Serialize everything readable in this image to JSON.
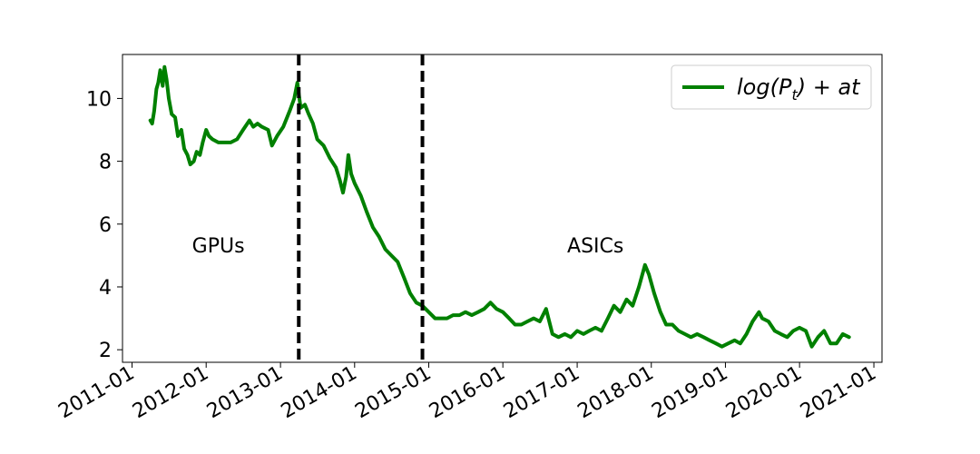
{
  "chart_data": {
    "type": "line",
    "grid": false,
    "legend_placement": "top-right",
    "x_axis": {
      "kind": "date",
      "range": [
        "2010-11-15",
        "2021-02-10"
      ],
      "tick_labels": [
        "2011-01",
        "2012-01",
        "2013-01",
        "2014-01",
        "2015-01",
        "2016-01",
        "2017-01",
        "2018-01",
        "2019-01",
        "2020-01",
        "2021-01"
      ]
    },
    "y_axis": {
      "range": [
        1.6,
        11.4
      ],
      "ticks": [
        2,
        4,
        6,
        8,
        10
      ]
    },
    "vlines": [
      {
        "x": "2013-04-01",
        "style": "dashed",
        "color": "#000000"
      },
      {
        "x": "2014-12-01",
        "style": "dashed",
        "color": "#000000"
      }
    ],
    "annotations": [
      {
        "text": "GPUs",
        "x": "2012-03-01",
        "y": 5.1
      },
      {
        "text": "ASICs",
        "x": "2017-04-01",
        "y": 5.1
      }
    ],
    "series": [
      {
        "legend_math": {
          "pre": "log(",
          "var": "P",
          "sub": "t",
          "post": ") + at"
        },
        "color": "#008000",
        "points": [
          [
            "2011-04-01",
            9.3
          ],
          [
            "2011-04-10",
            9.2
          ],
          [
            "2011-04-20",
            9.6
          ],
          [
            "2011-05-01",
            10.3
          ],
          [
            "2011-05-10",
            10.5
          ],
          [
            "2011-05-20",
            10.9
          ],
          [
            "2011-06-01",
            10.4
          ],
          [
            "2011-06-10",
            11.0
          ],
          [
            "2011-06-20",
            10.6
          ],
          [
            "2011-07-01",
            10.0
          ],
          [
            "2011-07-15",
            9.5
          ],
          [
            "2011-08-01",
            9.4
          ],
          [
            "2011-08-15",
            8.8
          ],
          [
            "2011-09-01",
            9.0
          ],
          [
            "2011-09-15",
            8.4
          ],
          [
            "2011-10-01",
            8.2
          ],
          [
            "2011-10-15",
            7.9
          ],
          [
            "2011-11-01",
            8.0
          ],
          [
            "2011-11-15",
            8.3
          ],
          [
            "2011-12-01",
            8.2
          ],
          [
            "2011-12-15",
            8.6
          ],
          [
            "2012-01-01",
            9.0
          ],
          [
            "2012-01-15",
            8.8
          ],
          [
            "2012-02-01",
            8.7
          ],
          [
            "2012-03-01",
            8.6
          ],
          [
            "2012-04-01",
            8.6
          ],
          [
            "2012-05-01",
            8.6
          ],
          [
            "2012-06-01",
            8.7
          ],
          [
            "2012-07-01",
            9.0
          ],
          [
            "2012-08-01",
            9.3
          ],
          [
            "2012-08-20",
            9.1
          ],
          [
            "2012-09-10",
            9.2
          ],
          [
            "2012-10-01",
            9.1
          ],
          [
            "2012-11-01",
            9.0
          ],
          [
            "2012-11-20",
            8.5
          ],
          [
            "2012-12-15",
            8.8
          ],
          [
            "2013-01-15",
            9.1
          ],
          [
            "2013-02-15",
            9.6
          ],
          [
            "2013-03-10",
            10.0
          ],
          [
            "2013-03-25",
            10.5
          ],
          [
            "2013-04-10",
            9.7
          ],
          [
            "2013-05-01",
            9.8
          ],
          [
            "2013-05-20",
            9.5
          ],
          [
            "2013-06-10",
            9.2
          ],
          [
            "2013-07-01",
            8.7
          ],
          [
            "2013-08-01",
            8.5
          ],
          [
            "2013-09-01",
            8.1
          ],
          [
            "2013-10-01",
            7.8
          ],
          [
            "2013-10-20",
            7.4
          ],
          [
            "2013-11-05",
            7.0
          ],
          [
            "2013-11-20",
            7.5
          ],
          [
            "2013-12-01",
            8.2
          ],
          [
            "2013-12-15",
            7.6
          ],
          [
            "2014-01-01",
            7.3
          ],
          [
            "2014-02-01",
            6.9
          ],
          [
            "2014-03-01",
            6.4
          ],
          [
            "2014-04-01",
            5.9
          ],
          [
            "2014-05-01",
            5.6
          ],
          [
            "2014-06-01",
            5.2
          ],
          [
            "2014-07-01",
            5.0
          ],
          [
            "2014-08-01",
            4.8
          ],
          [
            "2014-09-01",
            4.3
          ],
          [
            "2014-10-01",
            3.8
          ],
          [
            "2014-11-01",
            3.5
          ],
          [
            "2014-12-01",
            3.4
          ],
          [
            "2015-01-01",
            3.2
          ],
          [
            "2015-02-01",
            3.0
          ],
          [
            "2015-03-01",
            3.0
          ],
          [
            "2015-04-01",
            3.0
          ],
          [
            "2015-05-01",
            3.1
          ],
          [
            "2015-06-01",
            3.1
          ],
          [
            "2015-07-01",
            3.2
          ],
          [
            "2015-08-01",
            3.1
          ],
          [
            "2015-09-01",
            3.2
          ],
          [
            "2015-10-01",
            3.3
          ],
          [
            "2015-11-01",
            3.5
          ],
          [
            "2015-12-01",
            3.3
          ],
          [
            "2016-01-01",
            3.2
          ],
          [
            "2016-02-01",
            3.0
          ],
          [
            "2016-03-01",
            2.8
          ],
          [
            "2016-04-01",
            2.8
          ],
          [
            "2016-05-01",
            2.9
          ],
          [
            "2016-06-01",
            3.0
          ],
          [
            "2016-07-01",
            2.9
          ],
          [
            "2016-08-01",
            3.3
          ],
          [
            "2016-09-01",
            2.5
          ],
          [
            "2016-10-01",
            2.4
          ],
          [
            "2016-11-01",
            2.5
          ],
          [
            "2016-12-01",
            2.4
          ],
          [
            "2017-01-01",
            2.6
          ],
          [
            "2017-02-01",
            2.5
          ],
          [
            "2017-03-01",
            2.6
          ],
          [
            "2017-04-01",
            2.7
          ],
          [
            "2017-05-01",
            2.6
          ],
          [
            "2017-06-01",
            3.0
          ],
          [
            "2017-07-01",
            3.4
          ],
          [
            "2017-08-01",
            3.2
          ],
          [
            "2017-09-01",
            3.6
          ],
          [
            "2017-10-01",
            3.4
          ],
          [
            "2017-11-01",
            4.0
          ],
          [
            "2017-12-01",
            4.7
          ],
          [
            "2017-12-20",
            4.4
          ],
          [
            "2018-01-15",
            3.8
          ],
          [
            "2018-02-15",
            3.2
          ],
          [
            "2018-03-15",
            2.8
          ],
          [
            "2018-04-15",
            2.8
          ],
          [
            "2018-05-15",
            2.6
          ],
          [
            "2018-06-15",
            2.5
          ],
          [
            "2018-07-15",
            2.4
          ],
          [
            "2018-08-15",
            2.5
          ],
          [
            "2018-09-15",
            2.4
          ],
          [
            "2018-10-15",
            2.3
          ],
          [
            "2018-11-15",
            2.2
          ],
          [
            "2018-12-15",
            2.1
          ],
          [
            "2019-01-15",
            2.2
          ],
          [
            "2019-02-15",
            2.3
          ],
          [
            "2019-03-15",
            2.2
          ],
          [
            "2019-04-15",
            2.5
          ],
          [
            "2019-05-15",
            2.9
          ],
          [
            "2019-06-15",
            3.2
          ],
          [
            "2019-07-01",
            3.0
          ],
          [
            "2019-08-01",
            2.9
          ],
          [
            "2019-09-01",
            2.6
          ],
          [
            "2019-10-01",
            2.5
          ],
          [
            "2019-11-01",
            2.4
          ],
          [
            "2019-12-01",
            2.6
          ],
          [
            "2020-01-01",
            2.7
          ],
          [
            "2020-02-01",
            2.6
          ],
          [
            "2020-03-01",
            2.1
          ],
          [
            "2020-04-01",
            2.4
          ],
          [
            "2020-05-01",
            2.6
          ],
          [
            "2020-06-01",
            2.2
          ],
          [
            "2020-07-01",
            2.2
          ],
          [
            "2020-08-01",
            2.5
          ],
          [
            "2020-09-01",
            2.4
          ]
        ]
      }
    ]
  }
}
